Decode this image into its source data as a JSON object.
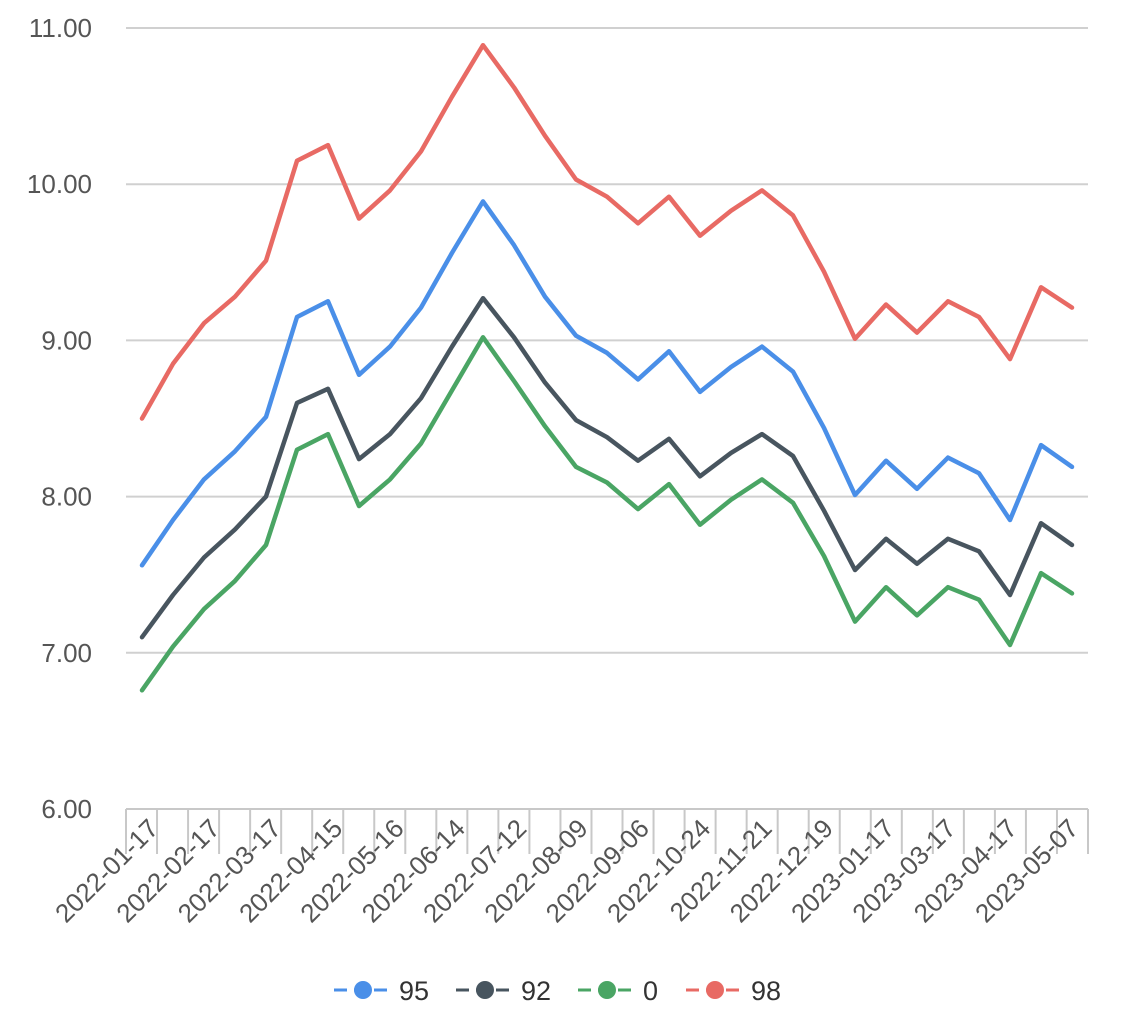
{
  "chart_data": {
    "type": "line",
    "title": "",
    "xlabel": "",
    "ylabel": "",
    "ylim": [
      6.0,
      11.0
    ],
    "y_ticks": [
      "6.00",
      "7.00",
      "8.00",
      "9.00",
      "10.00",
      "11.00"
    ],
    "grid": "horizontal",
    "legend_position": "bottom",
    "x_tick_labels": [
      "2022-01-17",
      "2022-02-17",
      "2022-03-17",
      "2022-04-15",
      "2022-05-16",
      "2022-06-14",
      "2022-07-12",
      "2022-08-09",
      "2022-09-06",
      "2022-10-24",
      "2022-11-21",
      "2022-12-19",
      "2023-01-17",
      "2023-03-17",
      "2023-04-17",
      "2023-05-07"
    ],
    "x_count": 31,
    "series": [
      {
        "name": "95",
        "color": "#4a8fe8",
        "values": [
          7.56,
          7.85,
          8.11,
          8.29,
          8.51,
          9.15,
          9.25,
          8.78,
          8.96,
          9.21,
          9.56,
          9.89,
          9.61,
          9.28,
          9.03,
          8.92,
          8.75,
          8.93,
          8.67,
          8.83,
          8.96,
          8.8,
          8.44,
          8.01,
          8.23,
          8.05,
          8.25,
          8.15,
          7.85,
          8.33,
          8.19
        ]
      },
      {
        "name": "92",
        "color": "#48555f",
        "values": [
          7.1,
          7.37,
          7.61,
          7.79,
          8.0,
          8.6,
          8.69,
          8.24,
          8.4,
          8.63,
          8.96,
          9.27,
          9.02,
          8.73,
          8.49,
          8.38,
          8.23,
          8.37,
          8.13,
          8.28,
          8.4,
          8.26,
          7.91,
          7.53,
          7.73,
          7.57,
          7.73,
          7.65,
          7.37,
          7.83,
          7.69
        ]
      },
      {
        "name": "0",
        "color": "#4aa564",
        "values": [
          6.76,
          7.04,
          7.28,
          7.46,
          7.69,
          8.3,
          8.4,
          7.94,
          8.11,
          8.34,
          8.68,
          9.02,
          8.74,
          8.45,
          8.19,
          8.09,
          7.92,
          8.08,
          7.82,
          7.98,
          8.11,
          7.96,
          7.62,
          7.2,
          7.42,
          7.24,
          7.42,
          7.34,
          7.05,
          7.51,
          7.38
        ]
      },
      {
        "name": "98",
        "color": "#e86a64",
        "values": [
          8.5,
          8.85,
          9.11,
          9.28,
          9.51,
          10.15,
          10.25,
          9.78,
          9.96,
          10.21,
          10.56,
          10.89,
          10.62,
          10.31,
          10.03,
          9.92,
          9.75,
          9.92,
          9.67,
          9.83,
          9.96,
          9.8,
          9.44,
          9.01,
          9.23,
          9.05,
          9.25,
          9.15,
          8.88,
          9.34,
          9.21
        ]
      }
    ]
  }
}
